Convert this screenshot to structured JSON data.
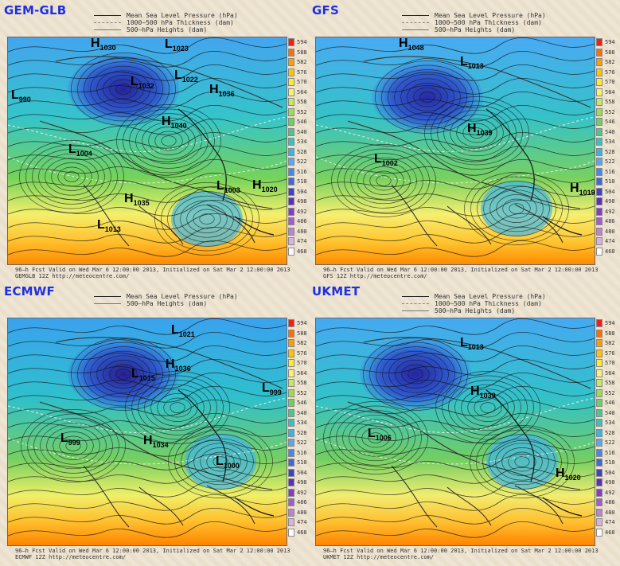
{
  "panels": [
    {
      "title": "GEM-GLB",
      "legend": [
        "Mean Sea Level Pressure (hPa)",
        "1000–500 hPa Thickness (dam)",
        "500–hPa Heights (dam)"
      ],
      "footer": [
        "96–h Fcst Valid on Wed Mar  6 12:00:00 2013, Initialized on Sat Mar  2 12:00:00 2013",
        "GEMGLB 12Z http://meteocentre.com/"
      ],
      "systems": [
        {
          "type": "H",
          "value": "1030"
        },
        {
          "type": "L",
          "value": "1023"
        },
        {
          "type": "L",
          "value": "1032"
        },
        {
          "type": "L",
          "value": "1022"
        },
        {
          "type": "H",
          "value": "1036"
        },
        {
          "type": "H",
          "value": "1040"
        },
        {
          "type": "L",
          "value": "990"
        },
        {
          "type": "L",
          "value": "1004"
        },
        {
          "type": "H",
          "value": "1035"
        },
        {
          "type": "L",
          "value": "1003"
        },
        {
          "type": "H",
          "value": "1020"
        },
        {
          "type": "L",
          "value": "1013"
        }
      ]
    },
    {
      "title": "GFS",
      "legend": [
        "Mean Sea Level Pressure (hPa)",
        "1000–500 hPa Thickness (dam)",
        "500–hPa Heights (dam)"
      ],
      "footer": [
        "96–h Fcst Valid on Wed Mar  6 12:00:00 2013, Initialized on Sat Mar  2 12:00:00 2013",
        "GFS 12Z http://meteocentre.com/"
      ],
      "systems": [
        {
          "type": "H",
          "value": "1048"
        },
        {
          "type": "L",
          "value": "1013"
        },
        {
          "type": "H",
          "value": "1039"
        },
        {
          "type": "L",
          "value": "1002"
        },
        {
          "type": "H",
          "value": "1019"
        }
      ]
    },
    {
      "title": "ECMWF",
      "legend": [
        "Mean Sea Level Pressure (hPa)",
        "500–hPa Heights (dam)"
      ],
      "footer": [
        "96–h Fcst Valid on Wed Mar  6 12:00:00 2013, Initialized on Sat Mar  2 12:00:00 2013",
        "ECMWF 12Z http://meteocentre.com/"
      ],
      "systems": [
        {
          "type": "L",
          "value": "1021"
        },
        {
          "type": "L",
          "value": "1015"
        },
        {
          "type": "H",
          "value": "1036"
        },
        {
          "type": "L",
          "value": "999"
        },
        {
          "type": "L",
          "value": "999"
        },
        {
          "type": "H",
          "value": "1034"
        },
        {
          "type": "L",
          "value": "1000"
        }
      ]
    },
    {
      "title": "UKMET",
      "legend": [
        "Mean Sea Level Pressure (hPa)",
        "1000–500 hPa Thickness (dam)",
        "500–hPa Heights (dam)"
      ],
      "footer": [
        "96–h Fcst Valid on Wed Mar  6 12:00:00 2013, Initialized on Sat Mar  2 12:00:00 2013",
        "UKMET 12Z http://meteocentre.com/"
      ],
      "systems": [
        {
          "type": "L",
          "value": "1013"
        },
        {
          "type": "H",
          "value": "1039"
        },
        {
          "type": "L",
          "value": "1006"
        },
        {
          "type": "H",
          "value": "1020"
        }
      ]
    }
  ],
  "colorbar": {
    "labels": [
      "594",
      "588",
      "582",
      "576",
      "570",
      "564",
      "558",
      "552",
      "546",
      "540",
      "534",
      "528",
      "522",
      "516",
      "510",
      "504",
      "498",
      "492",
      "486",
      "480",
      "474",
      "468"
    ],
    "colors": [
      "#ff1b12",
      "#ff6f00",
      "#ff9d00",
      "#ffc500",
      "#ffea2f",
      "#f8f36a",
      "#c7ea5b",
      "#9ede4e",
      "#6ed05e",
      "#49c78f",
      "#34c2c4",
      "#35b5ea",
      "#5aa6f3",
      "#4887ea",
      "#3d69d9",
      "#3d42c6",
      "#5d2ebd",
      "#8a38c9",
      "#a65acd",
      "#bf81d3",
      "#d8b2e4",
      "#ffffff"
    ]
  }
}
